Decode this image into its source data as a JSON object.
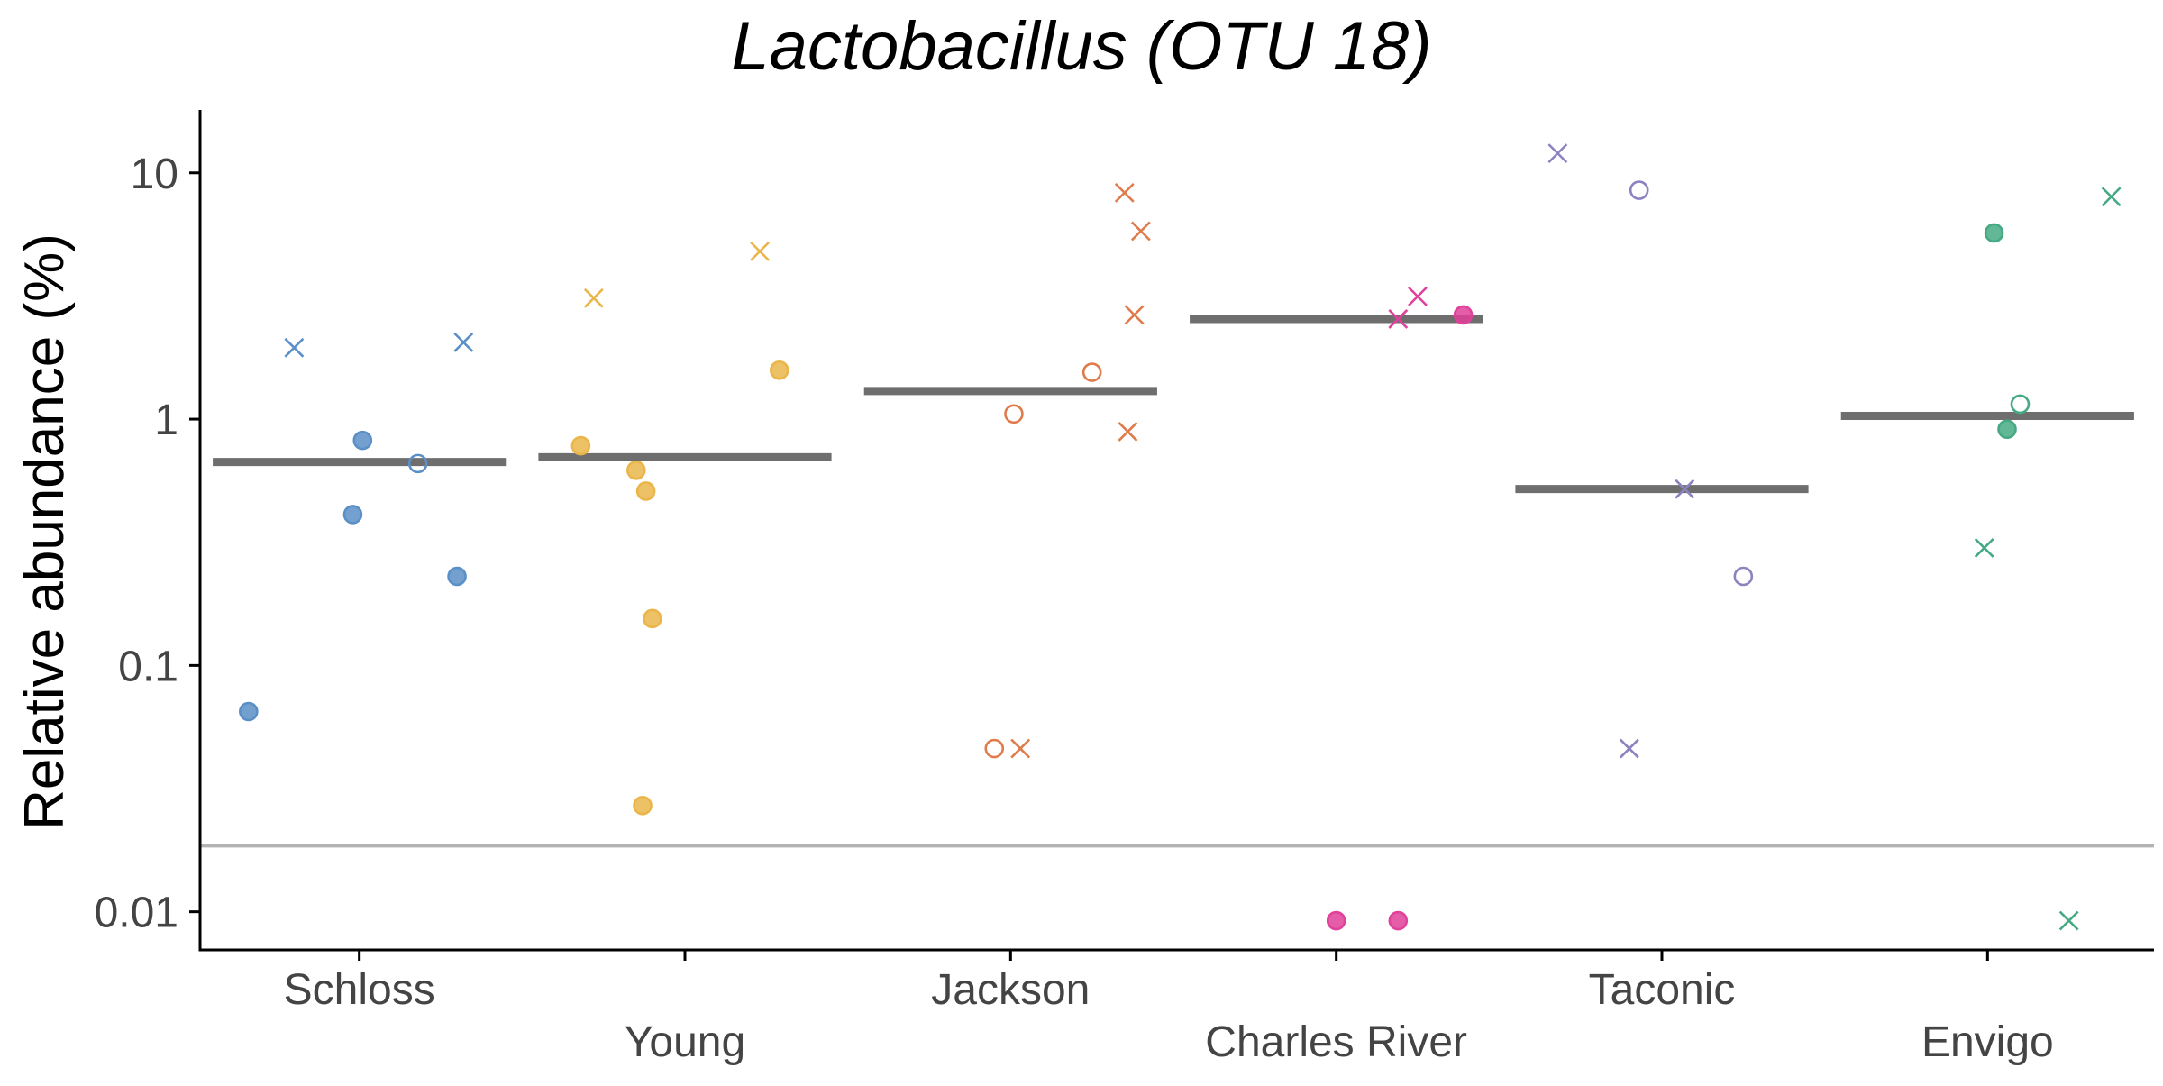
{
  "chart_data": {
    "type": "scatter",
    "title": "Lactobacillus (OTU 18)",
    "ylabel": "Relative abundance (%)",
    "xlabel": "",
    "y_scale": "log",
    "ylim": [
      0.007,
      18
    ],
    "y_ticks": [
      {
        "value": 0.01,
        "label": "0.01"
      },
      {
        "value": 0.1,
        "label": "0.1"
      },
      {
        "value": 1,
        "label": "1"
      },
      {
        "value": 10,
        "label": "10"
      }
    ],
    "categories": [
      "Schloss",
      "Young",
      "Jackson",
      "Charles River",
      "Taconic",
      "Envigo"
    ],
    "limit_of_detection": 0.0185,
    "grid": false,
    "legend": "none",
    "series": [
      {
        "color": "#5b8fc7",
        "median": 0.67,
        "points": [
          {
            "x": -0.34,
            "y": 0.065,
            "shape": "filled-circle"
          },
          {
            "x": -0.02,
            "y": 0.41,
            "shape": "filled-circle"
          },
          {
            "x": 0.01,
            "y": 0.82,
            "shape": "filled-circle"
          },
          {
            "x": 0.3,
            "y": 0.23,
            "shape": "filled-circle"
          },
          {
            "x": 0.18,
            "y": 0.66,
            "shape": "open-circle"
          },
          {
            "x": -0.2,
            "y": 1.95,
            "shape": "cross"
          },
          {
            "x": 0.32,
            "y": 2.05,
            "shape": "cross"
          }
        ]
      },
      {
        "color": "#eab64a",
        "median": 0.7,
        "points": [
          {
            "x": -0.32,
            "y": 0.78,
            "shape": "filled-circle"
          },
          {
            "x": -0.15,
            "y": 0.62,
            "shape": "filled-circle"
          },
          {
            "x": -0.12,
            "y": 0.51,
            "shape": "filled-circle"
          },
          {
            "x": -0.1,
            "y": 0.155,
            "shape": "filled-circle"
          },
          {
            "x": -0.13,
            "y": 0.027,
            "shape": "filled-circle"
          },
          {
            "x": 0.29,
            "y": 1.58,
            "shape": "filled-circle"
          },
          {
            "x": -0.28,
            "y": 3.1,
            "shape": "cross"
          },
          {
            "x": 0.23,
            "y": 4.8,
            "shape": "cross"
          }
        ]
      },
      {
        "color": "#e07b4c",
        "median": 1.3,
        "points": [
          {
            "x": 0.01,
            "y": 1.05,
            "shape": "open-circle"
          },
          {
            "x": 0.25,
            "y": 1.55,
            "shape": "open-circle"
          },
          {
            "x": -0.05,
            "y": 0.046,
            "shape": "open-circle"
          },
          {
            "x": 0.03,
            "y": 0.046,
            "shape": "cross"
          },
          {
            "x": 0.35,
            "y": 8.3,
            "shape": "cross"
          },
          {
            "x": 0.4,
            "y": 5.8,
            "shape": "cross"
          },
          {
            "x": 0.38,
            "y": 2.65,
            "shape": "cross"
          },
          {
            "x": 0.36,
            "y": 0.89,
            "shape": "cross"
          }
        ]
      },
      {
        "color": "#e0419a",
        "median": 2.55,
        "points": [
          {
            "x": 0.39,
            "y": 2.65,
            "shape": "filled-circle"
          },
          {
            "x": 0.0,
            "y": 0.0092,
            "shape": "filled-circle"
          },
          {
            "x": 0.19,
            "y": 0.0092,
            "shape": "filled-circle"
          },
          {
            "x": 0.19,
            "y": 2.55,
            "shape": "cross"
          },
          {
            "x": 0.25,
            "y": 3.15,
            "shape": "cross"
          }
        ]
      },
      {
        "color": "#8b83bf",
        "median": 0.52,
        "points": [
          {
            "x": -0.32,
            "y": 12.0,
            "shape": "cross"
          },
          {
            "x": -0.1,
            "y": 0.046,
            "shape": "cross"
          },
          {
            "x": 0.07,
            "y": 0.52,
            "shape": "cross"
          },
          {
            "x": -0.07,
            "y": 8.5,
            "shape": "open-circle"
          },
          {
            "x": 0.25,
            "y": 0.23,
            "shape": "open-circle"
          }
        ]
      },
      {
        "color": "#45aa84",
        "median": 1.03,
        "points": [
          {
            "x": 0.02,
            "y": 5.7,
            "shape": "filled-circle"
          },
          {
            "x": 0.06,
            "y": 0.91,
            "shape": "filled-circle"
          },
          {
            "x": 0.1,
            "y": 1.15,
            "shape": "open-circle"
          },
          {
            "x": 0.38,
            "y": 8.0,
            "shape": "cross"
          },
          {
            "x": -0.01,
            "y": 0.3,
            "shape": "cross"
          },
          {
            "x": 0.25,
            "y": 0.0092,
            "shape": "cross"
          }
        ]
      }
    ]
  }
}
